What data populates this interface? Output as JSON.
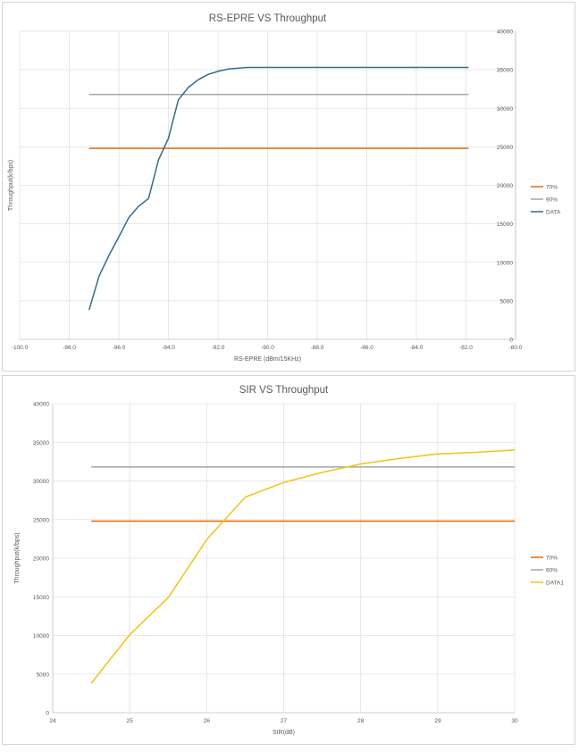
{
  "chart_data": [
    {
      "type": "line",
      "title": "RS-EPRE VS Throughput",
      "xlabel": "RS-EPRE (dBm/15KHz)",
      "ylabel": "Throughput(k/bps)",
      "xlim": [
        -100,
        -80
      ],
      "ylim": [
        0,
        40000
      ],
      "xticks": [
        "-100.0",
        "-98.0",
        "-96.0",
        "-94.0",
        "-92.0",
        "-90.0",
        "-88.0",
        "-86.0",
        "-84.0",
        "-82.0",
        "-80.0"
      ],
      "yticks": [
        "0",
        "5000",
        "10000",
        "15000",
        "20000",
        "25000",
        "30000",
        "35000",
        "40000"
      ],
      "y_axis_side": "right",
      "grid": true,
      "legend_position": "right",
      "series": [
        {
          "name": "70%",
          "color": "#e36c09",
          "x": [
            -97.2,
            -81.9
          ],
          "y": [
            24800,
            24800
          ]
        },
        {
          "name": "90%",
          "color": "#a5a5a5",
          "x": [
            -97.2,
            -81.9
          ],
          "y": [
            31800,
            31800
          ]
        },
        {
          "name": "DATA",
          "color": "#336b8b",
          "x": [
            -97.2,
            -96.8,
            -96.4,
            -96.0,
            -95.6,
            -95.2,
            -94.8,
            -94.4,
            -94.0,
            -93.6,
            -93.2,
            -92.8,
            -92.4,
            -92.0,
            -91.6,
            -91.2,
            -90.8,
            -90.4,
            -90.0,
            -89.6,
            -89.2,
            -88.8,
            -88.0,
            -86.0,
            -84.0,
            -81.9
          ],
          "y": [
            3800,
            8200,
            10900,
            13300,
            15800,
            17300,
            18300,
            23300,
            26100,
            31100,
            32700,
            33700,
            34400,
            34800,
            35100,
            35200,
            35300,
            35300,
            35300,
            35300,
            35300,
            35300,
            35300,
            35300,
            35300,
            35300
          ]
        }
      ]
    },
    {
      "type": "line",
      "title": "SIR VS Throughput",
      "xlabel": "SIR(dB)",
      "ylabel": "Throughput(k/bps)",
      "xlim": [
        24,
        30
      ],
      "ylim": [
        0,
        40000
      ],
      "xticks": [
        "24",
        "25",
        "26",
        "27",
        "28",
        "29",
        "30"
      ],
      "yticks": [
        "0",
        "5000",
        "10000",
        "15000",
        "20000",
        "25000",
        "30000",
        "35000",
        "40000"
      ],
      "y_axis_side": "left",
      "grid": true,
      "legend_position": "right",
      "series": [
        {
          "name": "70%",
          "color": "#e36c09",
          "x": [
            24.5,
            30
          ],
          "y": [
            24800,
            24800
          ]
        },
        {
          "name": "90%",
          "color": "#a5a5a5",
          "x": [
            24.5,
            30
          ],
          "y": [
            31800,
            31800
          ]
        },
        {
          "name": "DATA1",
          "color": "#f2c314",
          "x": [
            24.5,
            25.0,
            25.5,
            26.0,
            26.5,
            27.0,
            27.5,
            28.0,
            28.5,
            29.0,
            29.5,
            30.0
          ],
          "y": [
            3800,
            10100,
            14900,
            22400,
            27900,
            29800,
            31100,
            32200,
            32900,
            33500,
            33700,
            34000
          ]
        }
      ]
    }
  ]
}
